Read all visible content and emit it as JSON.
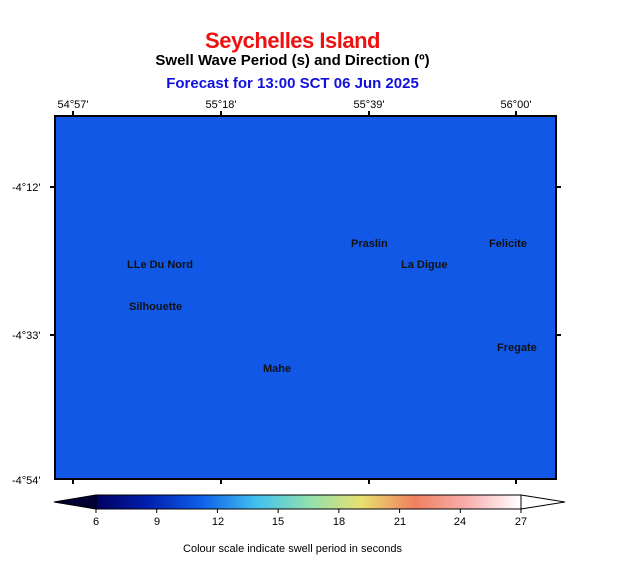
{
  "header": {
    "title": "Seychelles Island",
    "subtitle": "Swell Wave Period (s) and Direction (º)",
    "forecast": "Forecast for  13:00 SCT 06 Jun 2025"
  },
  "axes": {
    "lon_labels": [
      "54°57'",
      "55°18'",
      "55°39'",
      "56°00'"
    ],
    "lat_labels": [
      "-4°12'",
      "-4°33'",
      "-4°54'"
    ]
  },
  "map": {
    "fill_color": "#1258e6",
    "places": [
      "LLe Du Nord",
      "Praslin",
      "Felicite",
      "La Digue",
      "Silhouette",
      "Fregate",
      "Mahe"
    ]
  },
  "colorbar": {
    "ticks": [
      "6",
      "9",
      "12",
      "15",
      "18",
      "21",
      "24",
      "27"
    ],
    "colors": [
      "#000060",
      "#0020b0",
      "#1060e8",
      "#40c0f0",
      "#90e0b0",
      "#e8e070",
      "#f08060",
      "#f8b0b0",
      "#ffffff"
    ],
    "caption": "Colour scale indicate swell period in seconds"
  }
}
